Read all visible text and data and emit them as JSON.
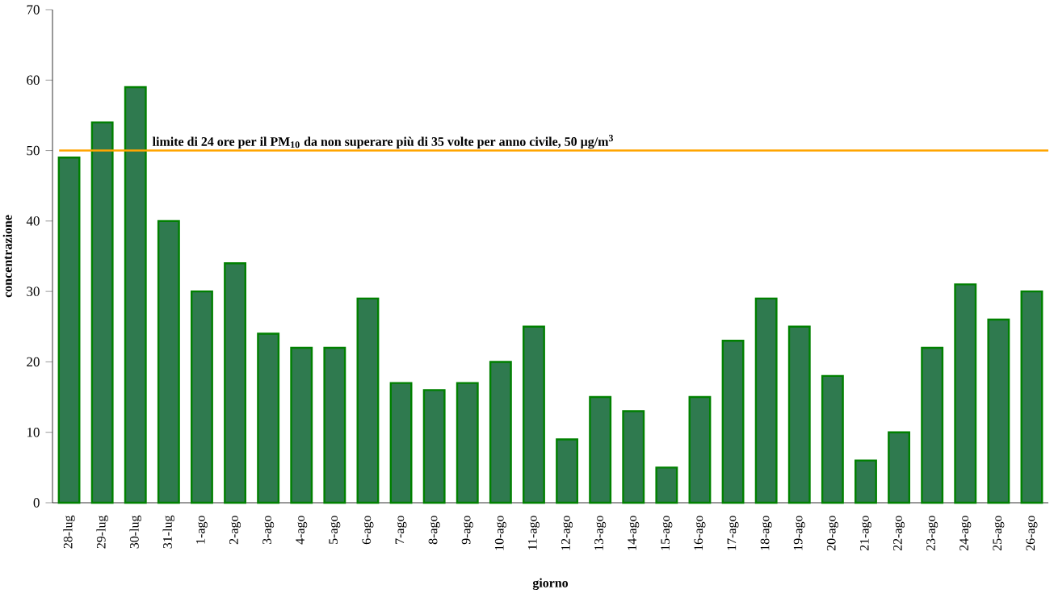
{
  "chart_data": {
    "type": "bar",
    "xlabel": "giorno",
    "ylabel": "concentrazione",
    "categories": [
      "28-lug",
      "29-lug",
      "30-lug",
      "31-lug",
      "1-ago",
      "2-ago",
      "3-ago",
      "4-ago",
      "5-ago",
      "6-ago",
      "7-ago",
      "8-ago",
      "9-ago",
      "10-ago",
      "11-ago",
      "12-ago",
      "13-ago",
      "14-ago",
      "15-ago",
      "16-ago",
      "17-ago",
      "18-ago",
      "19-ago",
      "20-ago",
      "21-ago",
      "22-ago",
      "23-ago",
      "24-ago",
      "25-ago",
      "26-ago"
    ],
    "values": [
      49,
      54,
      59,
      40,
      30,
      34,
      24,
      22,
      22,
      29,
      17,
      16,
      17,
      20,
      25,
      9,
      15,
      13,
      5,
      15,
      23,
      29,
      25,
      18,
      6,
      10,
      22,
      31,
      26,
      30
    ],
    "color": "#2f7a4f",
    "ylim": [
      0,
      70
    ],
    "yticks": [
      0,
      10,
      20,
      30,
      40,
      50,
      60,
      70
    ],
    "ref_lines": [
      {
        "axis": "y",
        "value": 50,
        "label": "limite di 24 ore per il PM$_{10}$ da non superare più di 35 volte per anno civile, 50 µg/m$^{3}$",
        "color": "#ffa500"
      }
    ]
  }
}
